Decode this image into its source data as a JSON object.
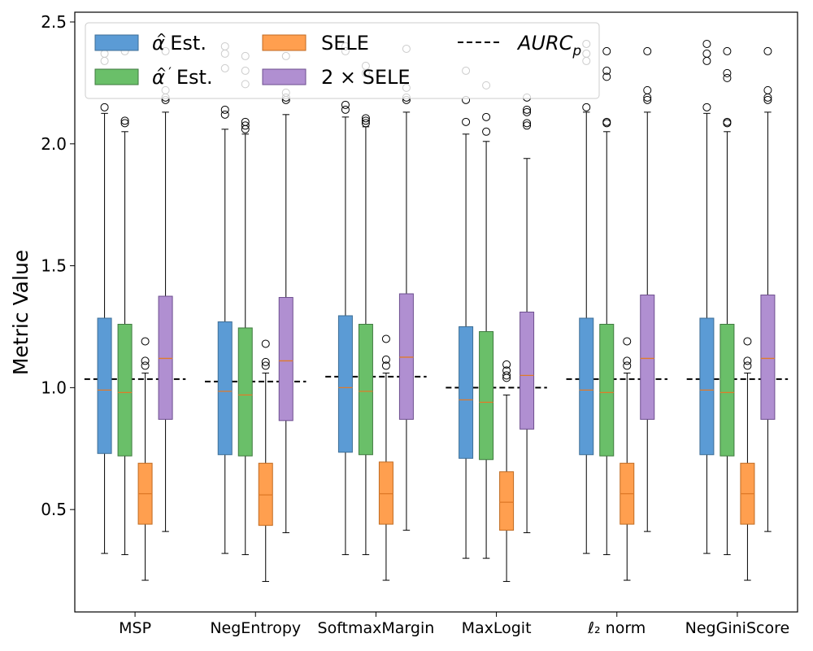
{
  "chart_data": {
    "type": "boxplot",
    "title": "",
    "xlabel": "",
    "ylabel": "Metric Value",
    "ylim": [
      0.08,
      2.54
    ],
    "yticks": [
      0.5,
      1.0,
      1.5,
      2.0,
      2.5
    ],
    "ytick_labels": [
      "0.5",
      "1.0",
      "1.5",
      "2.0",
      "2.5"
    ],
    "grid": false,
    "legend_position": "top-left",
    "categories": [
      "MSP",
      "NegEntropy",
      "SoftmaxMargin",
      "MaxLogit",
      "ℓ₂ norm",
      "NegGiniScore"
    ],
    "series": [
      {
        "name": "α̂ Est.",
        "legend_label": "Est.",
        "color": "#5b9bd5",
        "edge": "#3d6e96",
        "boxes": [
          {
            "whislo": 0.32,
            "q1": 0.73,
            "med": 0.99,
            "q3": 1.285,
            "whishi": 2.125,
            "fliers": [
              2.15,
              2.34,
              2.37,
              2.42
            ]
          },
          {
            "whislo": 0.32,
            "q1": 0.725,
            "med": 0.985,
            "q3": 1.27,
            "whishi": 2.06,
            "fliers": [
              2.12,
              2.14,
              2.31,
              2.37,
              2.4
            ]
          },
          {
            "whislo": 0.315,
            "q1": 0.735,
            "med": 1.0,
            "q3": 1.295,
            "whishi": 2.11,
            "fliers": [
              2.14,
              2.16,
              2.38,
              2.4
            ]
          },
          {
            "whislo": 0.3,
            "q1": 0.71,
            "med": 0.95,
            "q3": 1.25,
            "whishi": 2.04,
            "fliers": [
              2.09,
              2.18,
              2.3
            ]
          },
          {
            "whislo": 0.32,
            "q1": 0.725,
            "med": 0.99,
            "q3": 1.285,
            "whishi": 2.13,
            "fliers": [
              2.15,
              2.34,
              2.37,
              2.41
            ]
          },
          {
            "whislo": 0.32,
            "q1": 0.725,
            "med": 0.99,
            "q3": 1.285,
            "whishi": 2.125,
            "fliers": [
              2.15,
              2.34,
              2.37,
              2.41
            ]
          }
        ]
      },
      {
        "name": "α̂′ Est.",
        "legend_label": "Est.",
        "color": "#6abf69",
        "edge": "#3f7a3f",
        "boxes": [
          {
            "whislo": 0.315,
            "q1": 0.72,
            "med": 0.98,
            "q3": 1.26,
            "whishi": 2.05,
            "fliers": [
              2.085,
              2.095,
              2.27,
              2.29,
              2.38
            ]
          },
          {
            "whislo": 0.315,
            "q1": 0.72,
            "med": 0.97,
            "q3": 1.245,
            "whishi": 2.04,
            "fliers": [
              2.06,
              2.075,
              2.09,
              2.245,
              2.3,
              2.36
            ]
          },
          {
            "whislo": 0.315,
            "q1": 0.725,
            "med": 0.985,
            "q3": 1.26,
            "whishi": 2.07,
            "fliers": [
              2.085,
              2.095,
              2.105,
              2.29,
              2.32
            ]
          },
          {
            "whislo": 0.3,
            "q1": 0.705,
            "med": 0.94,
            "q3": 1.23,
            "whishi": 2.01,
            "fliers": [
              2.05,
              2.11,
              2.24
            ]
          },
          {
            "whislo": 0.315,
            "q1": 0.72,
            "med": 0.98,
            "q3": 1.26,
            "whishi": 2.05,
            "fliers": [
              2.085,
              2.09,
              2.275,
              2.3,
              2.38
            ]
          },
          {
            "whislo": 0.315,
            "q1": 0.72,
            "med": 0.98,
            "q3": 1.26,
            "whishi": 2.05,
            "fliers": [
              2.085,
              2.09,
              2.27,
              2.29,
              2.38
            ]
          }
        ]
      },
      {
        "name": "SELE",
        "legend_label": "SELE",
        "color": "#ff9f4f",
        "edge": "#c06a20",
        "boxes": [
          {
            "whislo": 0.21,
            "q1": 0.44,
            "med": 0.565,
            "q3": 0.69,
            "whishi": 1.06,
            "fliers": [
              1.09,
              1.11,
              1.19
            ]
          },
          {
            "whislo": 0.205,
            "q1": 0.435,
            "med": 0.56,
            "q3": 0.69,
            "whishi": 1.06,
            "fliers": [
              1.09,
              1.105,
              1.18
            ]
          },
          {
            "whislo": 0.21,
            "q1": 0.44,
            "med": 0.565,
            "q3": 0.695,
            "whishi": 1.06,
            "fliers": [
              1.09,
              1.115,
              1.2
            ]
          },
          {
            "whislo": 0.205,
            "q1": 0.415,
            "med": 0.53,
            "q3": 0.655,
            "whishi": 0.97,
            "fliers": [
              1.04,
              1.05,
              1.07,
              1.095
            ]
          },
          {
            "whislo": 0.21,
            "q1": 0.44,
            "med": 0.565,
            "q3": 0.69,
            "whishi": 1.06,
            "fliers": [
              1.09,
              1.11,
              1.19
            ]
          },
          {
            "whislo": 0.21,
            "q1": 0.44,
            "med": 0.565,
            "q3": 0.69,
            "whishi": 1.06,
            "fliers": [
              1.09,
              1.11,
              1.19
            ]
          }
        ]
      },
      {
        "name": "2 × SELE",
        "legend_label": "2 × SELE",
        "color": "#b08fd1",
        "edge": "#6e4f8f",
        "boxes": [
          {
            "whislo": 0.41,
            "q1": 0.87,
            "med": 1.12,
            "q3": 1.375,
            "whishi": 2.13,
            "fliers": [
              2.18,
              2.19,
              2.22,
              2.38
            ]
          },
          {
            "whislo": 0.405,
            "q1": 0.865,
            "med": 1.11,
            "q3": 1.37,
            "whishi": 2.12,
            "fliers": [
              2.18,
              2.19,
              2.21,
              2.36
            ]
          },
          {
            "whislo": 0.415,
            "q1": 0.87,
            "med": 1.125,
            "q3": 1.385,
            "whishi": 2.13,
            "fliers": [
              2.18,
              2.19,
              2.23,
              2.39
            ]
          },
          {
            "whislo": 0.405,
            "q1": 0.83,
            "med": 1.05,
            "q3": 1.31,
            "whishi": 1.94,
            "fliers": [
              2.075,
              2.085,
              2.13,
              2.14,
              2.19
            ]
          },
          {
            "whislo": 0.41,
            "q1": 0.87,
            "med": 1.12,
            "q3": 1.38,
            "whishi": 2.13,
            "fliers": [
              2.18,
              2.19,
              2.22,
              2.38
            ]
          },
          {
            "whislo": 0.41,
            "q1": 0.87,
            "med": 1.12,
            "q3": 1.38,
            "whishi": 2.13,
            "fliers": [
              2.18,
              2.19,
              2.22,
              2.38
            ]
          }
        ]
      }
    ],
    "reference_line": {
      "name": "AURC_p",
      "legend_label": "AURC",
      "legend_subscript": "p",
      "style": "dashed",
      "color": "#000000",
      "values": [
        1.035,
        1.025,
        1.045,
        1.0,
        1.035,
        1.035
      ]
    }
  }
}
